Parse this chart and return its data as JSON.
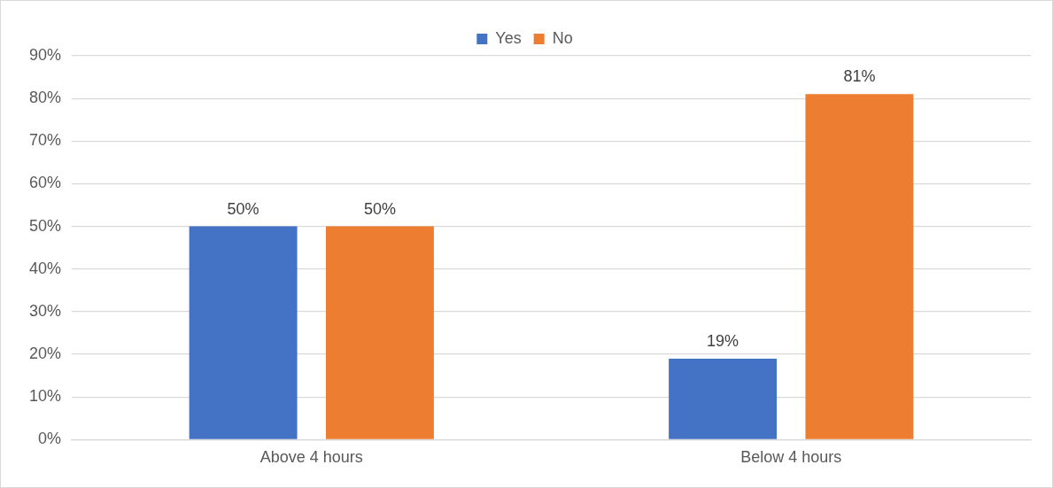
{
  "chart_data": {
    "type": "bar",
    "categories": [
      "Above 4 hours",
      "Below 4 hours"
    ],
    "series": [
      {
        "name": "Yes",
        "color": "#4472c4",
        "values": [
          50,
          19
        ],
        "value_labels": [
          "50%",
          "19%"
        ]
      },
      {
        "name": "No",
        "color": "#ed7d31",
        "values": [
          50,
          81
        ],
        "value_labels": [
          "50%",
          "81%"
        ]
      }
    ],
    "ylim": [
      0,
      90
    ],
    "yticks": [
      {
        "value": 0,
        "label": "0%"
      },
      {
        "value": 10,
        "label": "10%"
      },
      {
        "value": 20,
        "label": "20%"
      },
      {
        "value": 30,
        "label": "30%"
      },
      {
        "value": 40,
        "label": "40%"
      },
      {
        "value": 50,
        "label": "50%"
      },
      {
        "value": 60,
        "label": "60%"
      },
      {
        "value": 70,
        "label": "70%"
      },
      {
        "value": 80,
        "label": "80%"
      },
      {
        "value": 90,
        "label": "90%"
      }
    ],
    "grid": "y",
    "legend": "top"
  }
}
